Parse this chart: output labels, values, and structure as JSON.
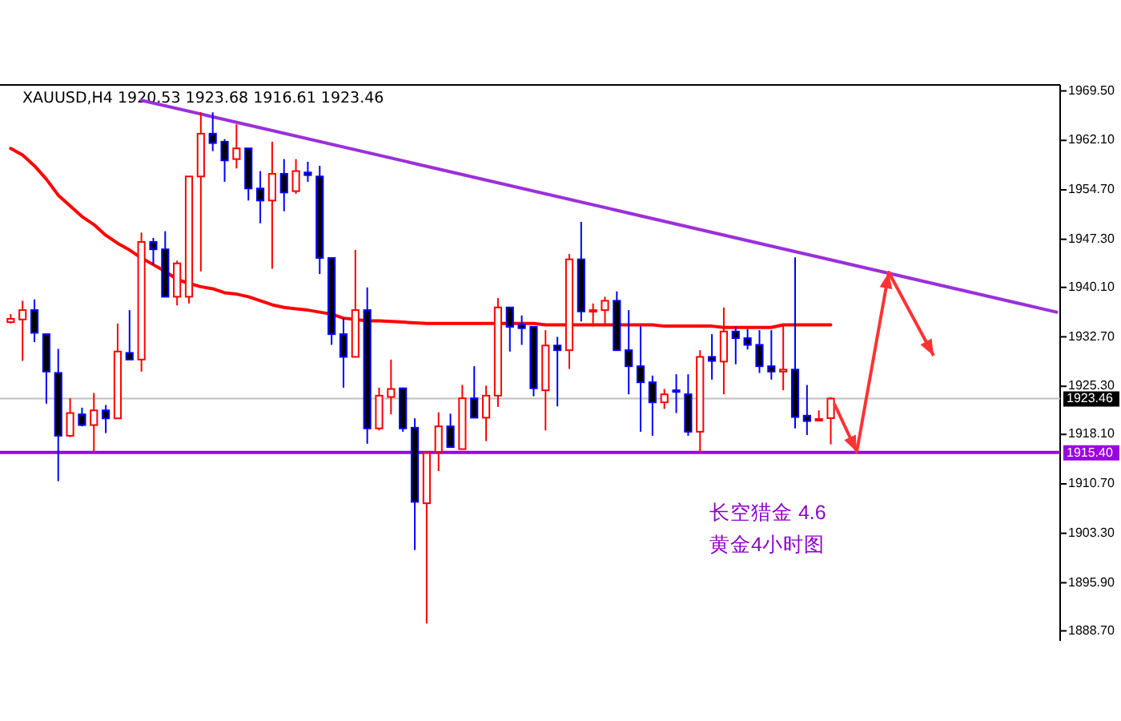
{
  "chart_data": {
    "type": "candlestick",
    "title": "XAUUSD,H4  1920.53 1923.68 1916.61 1923.46",
    "categories": [
      null,
      null,
      null,
      null,
      null,
      null,
      null,
      null,
      null,
      null,
      null,
      null,
      null,
      null,
      null,
      null,
      null,
      null,
      null,
      null,
      null,
      null,
      null,
      null,
      null,
      null,
      null,
      null,
      null,
      null,
      null,
      null,
      null,
      null,
      null,
      null,
      null,
      null,
      null,
      null,
      null,
      null,
      null,
      null,
      null,
      null,
      null,
      null,
      null,
      null,
      null,
      null,
      null,
      null,
      null,
      null,
      null,
      null,
      null,
      null,
      null,
      null,
      null,
      null,
      null,
      null,
      null,
      null,
      null,
      null,
      null,
      null,
      null,
      null,
      null,
      null,
      null,
      null,
      null,
      null,
      null,
      null,
      null,
      null,
      null,
      null,
      null,
      null,
      null
    ],
    "ohlc": [
      [
        1934.9,
        1936.1,
        1934.7,
        1935.4
      ],
      [
        1935.3,
        1938.1,
        1929.1,
        1936.7
      ],
      [
        1936.7,
        1938.3,
        1931.9,
        1933.3
      ],
      [
        1933.1,
        1933.1,
        1922.7,
        1927.5
      ],
      [
        1927.3,
        1930.9,
        1911.1,
        1917.9
      ],
      [
        1917.9,
        1923.5,
        1917.7,
        1921.3
      ],
      [
        1921.1,
        1922.1,
        1919.3,
        1919.5
      ],
      [
        1919.5,
        1924.3,
        1915.5,
        1921.7
      ],
      [
        1921.7,
        1922.5,
        1918.3,
        1920.5
      ],
      [
        1920.5,
        1934.7,
        1920.5,
        1930.5
      ],
      [
        1930.3,
        1936.7,
        1929.3,
        1929.3
      ],
      [
        1929.3,
        1948.3,
        1927.5,
        1946.9
      ],
      [
        1946.9,
        1947.5,
        1943.5,
        1945.8
      ],
      [
        1945.8,
        1948.5,
        1938.7,
        1938.7
      ],
      [
        1938.7,
        1944.1,
        1937.4,
        1943.7
      ],
      [
        1938.7,
        1956.7,
        1937.7,
        1956.7
      ],
      [
        1956.7,
        1966.3,
        1942.5,
        1963.1
      ],
      [
        1963.1,
        1966.3,
        1960.5,
        1961.7
      ],
      [
        1961.9,
        1962.3,
        1955.9,
        1959.1
      ],
      [
        1959.3,
        1964.5,
        1957.9,
        1960.9
      ],
      [
        1960.9,
        1960.9,
        1953.1,
        1954.9
      ],
      [
        1954.9,
        1957.5,
        1949.7,
        1953.1
      ],
      [
        1953.1,
        1961.9,
        1942.9,
        1957.1
      ],
      [
        1957.1,
        1959.3,
        1951.5,
        1954.3
      ],
      [
        1954.5,
        1959.3,
        1954.1,
        1957.5
      ],
      [
        1957.3,
        1958.9,
        1955.9,
        1956.9
      ],
      [
        1956.7,
        1958.3,
        1942.1,
        1944.5
      ],
      [
        1944.5,
        1944.5,
        1931.5,
        1933.1
      ],
      [
        1933.1,
        1935.5,
        1925.1,
        1929.7
      ],
      [
        1929.7,
        1945.7,
        1929.7,
        1936.7
      ],
      [
        1936.7,
        1940.1,
        1916.7,
        1919.0
      ],
      [
        1919.0,
        1925.1,
        1918.7,
        1923.9
      ],
      [
        1923.7,
        1929.3,
        1921.1,
        1924.9
      ],
      [
        1925.0,
        1925.1,
        1918.5,
        1919.0
      ],
      [
        1919.1,
        1920.5,
        1900.8,
        1908.0
      ],
      [
        1907.8,
        1915.5,
        1889.8,
        1915.3
      ],
      [
        1915.5,
        1921.4,
        1912.6,
        1919.3
      ],
      [
        1919.3,
        1921.2,
        1916.2,
        1916.2
      ],
      [
        1915.9,
        1925.5,
        1915.9,
        1923.5
      ],
      [
        1923.5,
        1928.3,
        1920.6,
        1920.6
      ],
      [
        1920.6,
        1925.4,
        1917.1,
        1923.9
      ],
      [
        1923.9,
        1938.5,
        1922.2,
        1937.1
      ],
      [
        1937.1,
        1937.1,
        1930.5,
        1934.2
      ],
      [
        1934.5,
        1935.9,
        1931.5,
        1934.0
      ],
      [
        1934.2,
        1934.2,
        1923.8,
        1925.0
      ],
      [
        1924.7,
        1933.7,
        1918.7,
        1931.4
      ],
      [
        1931.4,
        1932.7,
        1922.3,
        1930.7
      ],
      [
        1930.7,
        1945.1,
        1927.9,
        1944.3
      ],
      [
        1944.3,
        1949.9,
        1935.0,
        1936.5
      ],
      [
        1936.5,
        1937.7,
        1934.3,
        1936.7
      ],
      [
        1936.7,
        1938.7,
        1934.5,
        1938.1
      ],
      [
        1938.1,
        1939.5,
        1930.7,
        1930.7
      ],
      [
        1930.7,
        1936.7,
        1924.1,
        1928.3
      ],
      [
        1928.3,
        1934.3,
        1918.5,
        1925.9
      ],
      [
        1925.9,
        1926.9,
        1917.9,
        1922.9
      ],
      [
        1922.9,
        1924.9,
        1921.9,
        1924.1
      ],
      [
        1924.7,
        1927.1,
        1921.3,
        1924.5
      ],
      [
        1924.1,
        1927.1,
        1917.9,
        1918.5
      ],
      [
        1918.5,
        1930.7,
        1915.5,
        1929.7
      ],
      [
        1929.7,
        1933.1,
        1926.3,
        1929.1
      ],
      [
        1929.0,
        1937.1,
        1924.1,
        1933.5
      ],
      [
        1933.5,
        1934.2,
        1928.6,
        1932.5
      ],
      [
        1932.5,
        1933.9,
        1930.8,
        1931.5
      ],
      [
        1931.5,
        1933.7,
        1927.3,
        1928.3
      ],
      [
        1928.3,
        1933.7,
        1926.3,
        1927.5
      ],
      [
        1927.5,
        1934.5,
        1924.7,
        1927.8
      ],
      [
        1927.8,
        1944.6,
        1919.0,
        1920.7
      ],
      [
        1920.9,
        1925.5,
        1918.0,
        1920.1
      ],
      [
        1920.2,
        1921.7,
        1920.1,
        1920.4
      ],
      [
        1920.53,
        1923.68,
        1916.61,
        1923.46
      ],
      null,
      null,
      null,
      null,
      null,
      null,
      null,
      null,
      null,
      null,
      null,
      null,
      null,
      null,
      null,
      null,
      null,
      null,
      null
    ],
    "colors": [
      "#ff0000",
      "#ff0000",
      "#0000ff",
      "#0000ff",
      "#0000ff",
      "#ff0000",
      "#0000ff",
      "#ff0000",
      "#0000ff",
      "#ff0000",
      "#0000ff",
      "#ff0000",
      "#0000ff",
      "#0000ff",
      "#ff0000",
      "#ff0000",
      "#ff0000",
      "#0000ff",
      "#0000ff",
      "#ff0000",
      "#0000ff",
      "#0000ff",
      "#ff0000",
      "#0000ff",
      "#ff0000",
      "#0000ff",
      "#0000ff",
      "#0000ff",
      "#0000ff",
      "#ff0000",
      "#0000ff",
      "#ff0000",
      "#ff0000",
      "#0000ff",
      "#0000ff",
      "#ff0000",
      "#ff0000",
      "#0000ff",
      "#ff0000",
      "#0000ff",
      "#ff0000",
      "#ff0000",
      "#0000ff",
      "#0000ff",
      "#0000ff",
      "#ff0000",
      "#0000ff",
      "#ff0000",
      "#0000ff",
      "#ff0000",
      "#ff0000",
      "#0000ff",
      "#0000ff",
      "#0000ff",
      "#0000ff",
      "#ff0000",
      "#0000ff",
      "#0000ff",
      "#ff0000",
      "#0000ff",
      "#ff0000",
      "#0000ff",
      "#0000ff",
      "#0000ff",
      "#0000ff",
      "#ff0000",
      "#0000ff",
      "#0000ff",
      "#ff0000",
      "#ff0000",
      null,
      null,
      null,
      null,
      null,
      null,
      null,
      null,
      null,
      null,
      null,
      null,
      null,
      null,
      null,
      null,
      null,
      null,
      null
    ],
    "series": [
      {
        "type": "line",
        "color": "#ff0000",
        "values": [
          1960.9,
          1959.9,
          1958.3,
          1956.3,
          1953.9,
          1952.3,
          1950.7,
          1949.5,
          1947.9,
          1946.7,
          1945.7,
          1944.5,
          1943.5,
          1942.5,
          1941.3,
          1940.7,
          1940.2,
          1939.9,
          1939.3,
          1939.1,
          1938.7,
          1938.1,
          1937.5,
          1937.1,
          1936.9,
          1936.7,
          1936.4,
          1936.1,
          1935.5,
          1935.3,
          1935.1,
          1935.1,
          1935.0,
          1934.9,
          1934.8,
          1934.7,
          1934.7,
          1934.7,
          1934.7,
          1934.7,
          1934.7,
          1934.7,
          1934.7,
          1934.7,
          1934.7,
          1934.5,
          1934.5,
          1934.5,
          1934.5,
          1934.5,
          1934.5,
          1934.5,
          1934.5,
          1934.5,
          1934.5,
          1934.3,
          1934.3,
          1934.3,
          1934.3,
          1934.3,
          1934.1,
          1934.1,
          1934.1,
          1934.1,
          1934.1,
          1934.5,
          1934.5,
          1934.5,
          1934.5,
          1934.5,
          null,
          null,
          null,
          null,
          null,
          null,
          null,
          null,
          null,
          null,
          null,
          null,
          null,
          null,
          null,
          null,
          null,
          null,
          null
        ]
      },
      {
        "type": "line",
        "color": "#9b30d9",
        "values": [
          null,
          null,
          null,
          null,
          null,
          null,
          null,
          null,
          null,
          null,
          null,
          1968.1,
          null,
          null,
          null,
          null,
          null,
          null,
          null,
          null,
          null,
          null,
          null,
          null,
          null,
          null,
          null,
          null,
          null,
          null,
          null,
          null,
          null,
          null,
          null,
          null,
          null,
          null,
          null,
          null,
          null,
          null,
          null,
          null,
          null,
          null,
          null,
          null,
          null,
          null,
          null,
          null,
          null,
          null,
          null,
          null,
          null,
          null,
          null,
          null,
          null,
          null,
          null,
          null,
          null,
          null,
          null,
          null,
          null,
          null,
          null,
          null,
          null,
          null,
          null,
          null,
          null,
          null,
          null,
          null,
          null,
          null,
          null,
          null,
          null,
          null,
          null,
          null,
          1936.4
        ]
      }
    ],
    "ref_lines": [
      {
        "axis": "y",
        "value": 1923.46,
        "label": "1923.46",
        "color": "#c0c0c0"
      },
      {
        "axis": "y",
        "value": 1915.4,
        "label": "1915.40",
        "color": "#9b00e0"
      }
    ],
    "annotations": [
      "长空猎金  4.6",
      "黄金4小时图"
    ],
    "ylim": [
      1887.2,
      1970.4
    ],
    "yticks": [
      {
        "value": 1969.5,
        "label": "1969.50"
      },
      {
        "value": 1962.1,
        "label": "1962.10"
      },
      {
        "value": 1954.7,
        "label": "1954.70"
      },
      {
        "value": 1947.3,
        "label": "1947.30"
      },
      {
        "value": 1940.1,
        "label": "1940.10"
      },
      {
        "value": 1932.7,
        "label": "1932.70"
      },
      {
        "value": 1925.3,
        "label": "1925.30"
      },
      {
        "value": 1918.1,
        "label": "1918.10"
      },
      {
        "value": 1910.7,
        "label": "1910.70"
      },
      {
        "value": 1903.3,
        "label": "1903.30"
      },
      {
        "value": 1895.9,
        "label": "1895.90"
      },
      {
        "value": 1888.7,
        "label": "1888.70"
      }
    ],
    "tick_labels": "y"
  }
}
